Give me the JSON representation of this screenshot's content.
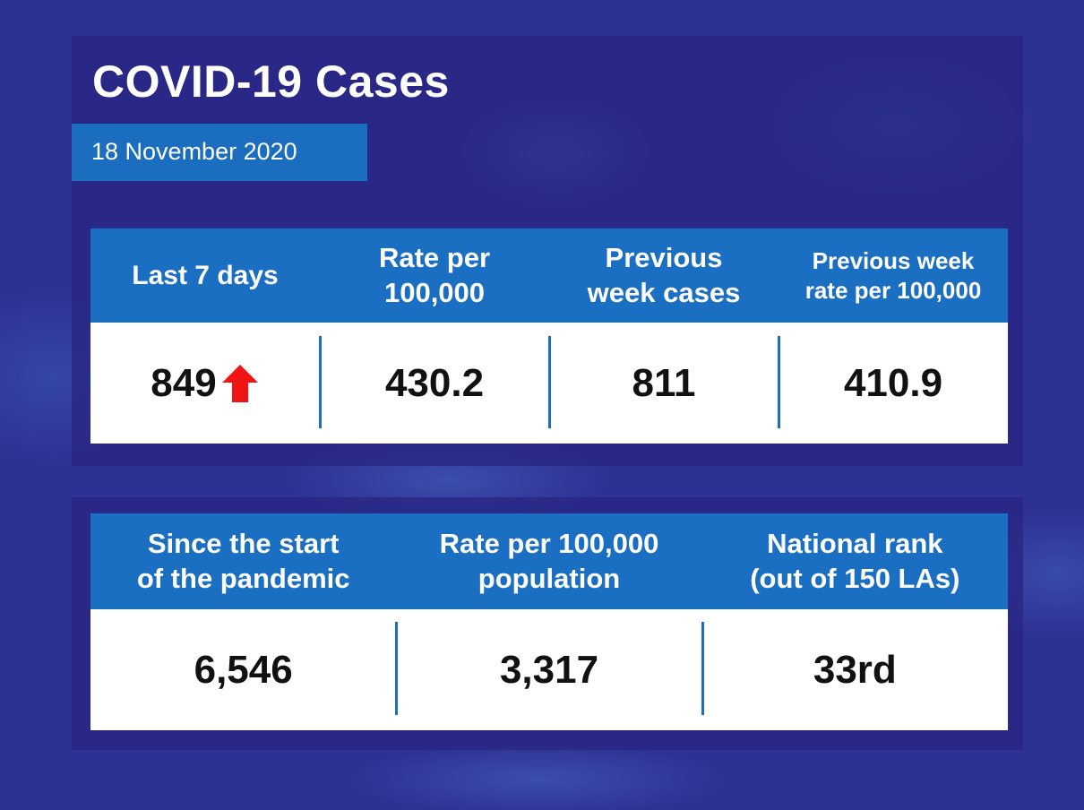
{
  "title": "COVID-19 Cases",
  "date": "18 November 2020",
  "weekly": {
    "headers": [
      [
        "Last 7 days"
      ],
      [
        "Rate per",
        "100,000"
      ],
      [
        "Previous",
        "week cases"
      ],
      [
        "Previous week",
        "rate per 100,000"
      ]
    ],
    "values": [
      "849",
      "430.2",
      "811",
      "410.9"
    ]
  },
  "total": {
    "headers": [
      [
        "Since the start",
        "of the pandemic"
      ],
      [
        "Rate per 100,000",
        "population"
      ],
      [
        "National rank",
        "(out of 150 LAs)"
      ]
    ],
    "values": [
      "6,546",
      "3,317",
      "33rd"
    ]
  }
}
